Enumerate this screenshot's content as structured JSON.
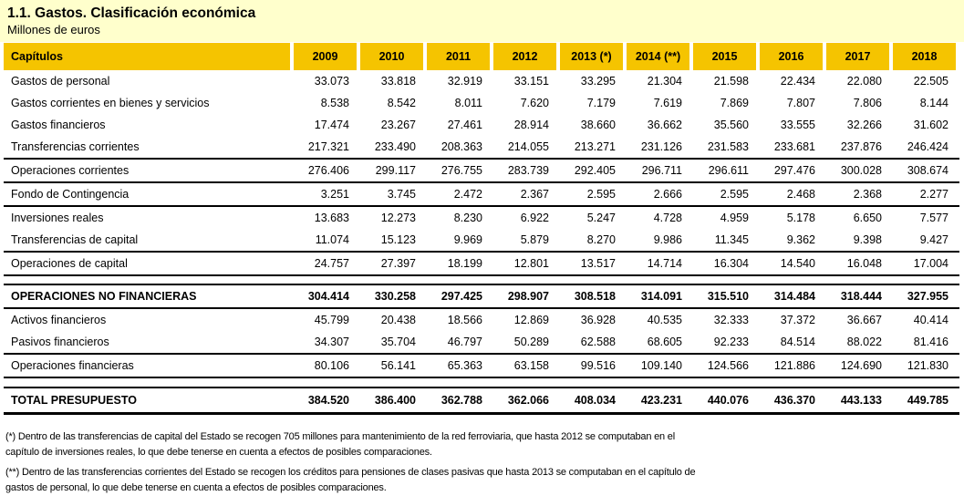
{
  "page": {
    "title": "1.1. Gastos. Clasificación económica",
    "subtitle": "Millones de euros",
    "colors": {
      "band_background": "#FFFFCC",
      "header_background": "#F5C400",
      "text": "#000000",
      "rule_lines": "#000000"
    }
  },
  "table": {
    "header": {
      "label": "Capítulos",
      "years": [
        "2009",
        "2010",
        "2011",
        "2012",
        "2013 (*)",
        "2014 (**)",
        "2015",
        "2016",
        "2017",
        "2018"
      ]
    },
    "rows": [
      {
        "label": "Gastos de personal",
        "classes": "",
        "values": [
          "33.073",
          "33.818",
          "32.919",
          "33.151",
          "33.295",
          "21.304",
          "21.598",
          "22.434",
          "22.080",
          "22.505"
        ]
      },
      {
        "label": "Gastos corrientes en bienes y servicios",
        "classes": "",
        "values": [
          "8.538",
          "8.542",
          "8.011",
          "7.620",
          "7.179",
          "7.619",
          "7.869",
          "7.807",
          "7.806",
          "8.144"
        ]
      },
      {
        "label": "Gastos financieros",
        "classes": "",
        "values": [
          "17.474",
          "23.267",
          "27.461",
          "28.914",
          "38.660",
          "36.662",
          "35.560",
          "33.555",
          "32.266",
          "31.602"
        ]
      },
      {
        "label": "Transferencias corrientes",
        "classes": "",
        "values": [
          "217.321",
          "233.490",
          "208.363",
          "214.055",
          "213.271",
          "231.126",
          "231.583",
          "233.681",
          "237.876",
          "246.424"
        ]
      },
      {
        "label": "Operaciones corrientes",
        "classes": "bt bb",
        "values": [
          "276.406",
          "299.117",
          "276.755",
          "283.739",
          "292.405",
          "296.711",
          "296.611",
          "297.476",
          "300.028",
          "308.674"
        ]
      },
      {
        "label": "Fondo de Contingencia",
        "classes": "bb",
        "values": [
          "3.251",
          "3.745",
          "2.472",
          "2.367",
          "2.595",
          "2.666",
          "2.595",
          "2.468",
          "2.368",
          "2.277"
        ]
      },
      {
        "label": "Inversiones reales",
        "classes": "",
        "values": [
          "13.683",
          "12.273",
          "8.230",
          "6.922",
          "5.247",
          "4.728",
          "4.959",
          "5.178",
          "6.650",
          "7.577"
        ]
      },
      {
        "label": "Transferencias de capital",
        "classes": "bb",
        "values": [
          "11.074",
          "15.123",
          "9.969",
          "5.879",
          "8.270",
          "9.986",
          "11.345",
          "9.362",
          "9.398",
          "9.427"
        ]
      },
      {
        "label": "Operaciones de capital",
        "classes": "bb",
        "values": [
          "24.757",
          "27.397",
          "18.199",
          "12.801",
          "13.517",
          "14.714",
          "16.304",
          "14.540",
          "16.048",
          "17.004"
        ]
      },
      {
        "type": "spacer",
        "classes": "bb"
      },
      {
        "label": "OPERACIONES NO FINANCIERAS",
        "classes": "bold bb",
        "values": [
          "304.414",
          "330.258",
          "297.425",
          "298.907",
          "308.518",
          "314.091",
          "315.510",
          "314.484",
          "318.444",
          "327.955"
        ]
      },
      {
        "label": "Activos financieros",
        "classes": "",
        "values": [
          "45.799",
          "20.438",
          "18.566",
          "12.869",
          "36.928",
          "40.535",
          "32.333",
          "37.372",
          "36.667",
          "40.414"
        ]
      },
      {
        "label": "Pasivos financieros",
        "classes": "bb",
        "values": [
          "34.307",
          "35.704",
          "46.797",
          "50.289",
          "62.588",
          "68.605",
          "92.233",
          "84.514",
          "88.022",
          "81.416"
        ]
      },
      {
        "label": "Operaciones financieras",
        "classes": "bb",
        "values": [
          "80.106",
          "56.141",
          "65.363",
          "63.158",
          "99.516",
          "109.140",
          "124.566",
          "121.886",
          "124.690",
          "121.830"
        ]
      },
      {
        "type": "spacer",
        "classes": "s9 bb"
      },
      {
        "label": "TOTAL PRESUPUESTO",
        "classes": "bold tall bb3",
        "values": [
          "384.520",
          "386.400",
          "362.788",
          "362.066",
          "408.034",
          "423.231",
          "440.076",
          "436.370",
          "443.133",
          "449.785"
        ]
      }
    ]
  },
  "footnotes": [
    "(*) Dentro de las transferencias de capital del Estado se recogen 705 millones para mantenimiento de la red ferroviaria, que hasta 2012 se computaban en el capítulo de inversiones reales, lo que debe tenerse en cuenta a efectos de posibles comparaciones.",
    "(**) Dentro de las transferencias corrientes del Estado se recogen los créditos para pensiones de clases pasivas que hasta 2013 se computaban en el capítulo de gastos de personal, lo que debe tenerse en cuenta a efectos de posibles comparaciones."
  ]
}
